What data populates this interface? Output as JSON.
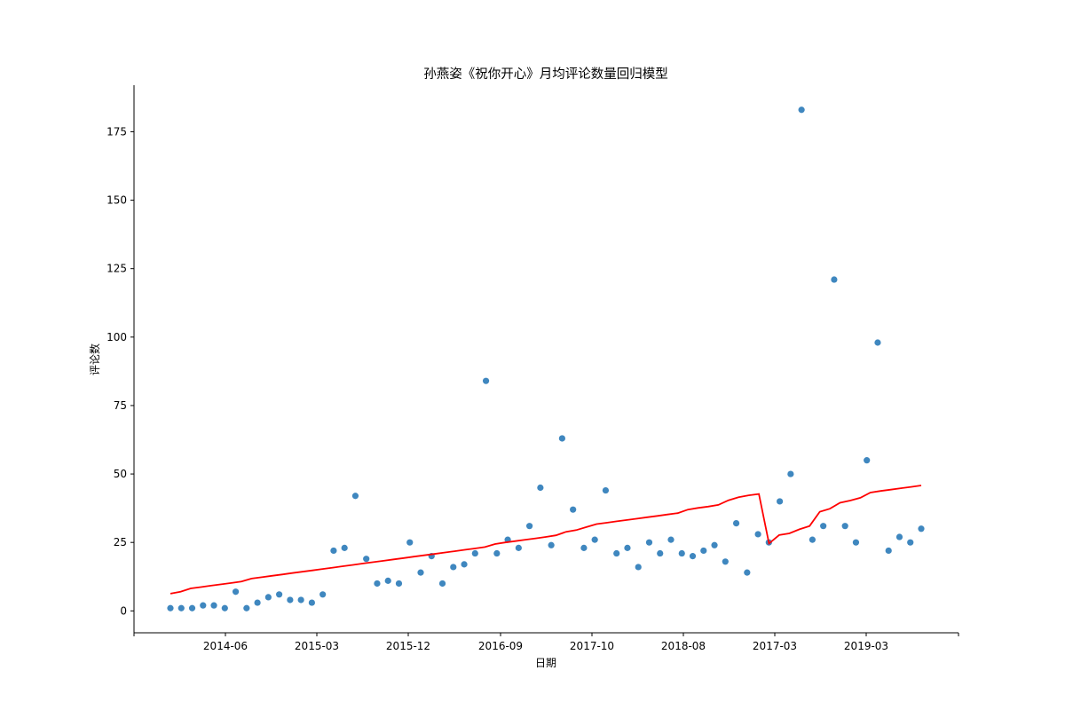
{
  "chart_data": {
    "type": "scatter",
    "title": "孙燕姿《祝你开心》月均评论数量回归模型",
    "xlabel": "日期",
    "ylabel": "评论数",
    "ylim": [
      -8,
      192
    ],
    "x_ticks": [
      "2014-06",
      "2015-03",
      "2015-12",
      "2016-09",
      "2017-10",
      "2018-08",
      "2017-03",
      "2019-03"
    ],
    "grid": false,
    "legend": "none",
    "colors": {
      "points": "#3f87bf",
      "regression": "#ff0000"
    },
    "series": [
      {
        "type": "scatter",
        "values": [
          1,
          1,
          1,
          2,
          2,
          1,
          7,
          1,
          3,
          5,
          6,
          4,
          4,
          3,
          6,
          22,
          23,
          42,
          19,
          10,
          11,
          10,
          25,
          14,
          20,
          10,
          16,
          17,
          21,
          84,
          21,
          26,
          23,
          31,
          45,
          24,
          63,
          37,
          23,
          26,
          44,
          21,
          23,
          16,
          25,
          21,
          26,
          21,
          20,
          22,
          24,
          18,
          32,
          14,
          28,
          25,
          40,
          50,
          183,
          26,
          31,
          121,
          31,
          25,
          55,
          98,
          22,
          27,
          25,
          30
        ]
      },
      {
        "type": "line",
        "values": [
          6.3,
          7.0,
          8.2,
          8.7,
          9.2,
          9.7,
          10.2,
          10.7,
          11.8,
          12.3,
          12.8,
          13.3,
          13.8,
          14.3,
          14.8,
          15.3,
          15.8,
          16.3,
          16.8,
          17.3,
          17.8,
          18.3,
          18.8,
          19.3,
          19.8,
          20.3,
          20.8,
          21.3,
          21.8,
          22.3,
          22.8,
          23.3,
          24.4,
          25.0,
          25.5,
          26.0,
          26.5,
          27.0,
          27.6,
          28.9,
          29.5,
          30.6,
          31.7,
          32.2,
          32.7,
          33.2,
          33.7,
          34.2,
          34.7,
          35.2,
          35.7,
          37.0,
          37.6,
          38.1,
          38.7,
          40.4,
          41.5,
          42.2,
          42.7,
          24.6,
          27.7,
          28.3,
          29.8,
          31.0,
          36.2,
          37.3,
          39.5,
          40.3,
          41.3,
          43.2,
          43.8,
          44.3,
          44.8,
          45.3,
          45.8
        ]
      }
    ]
  }
}
